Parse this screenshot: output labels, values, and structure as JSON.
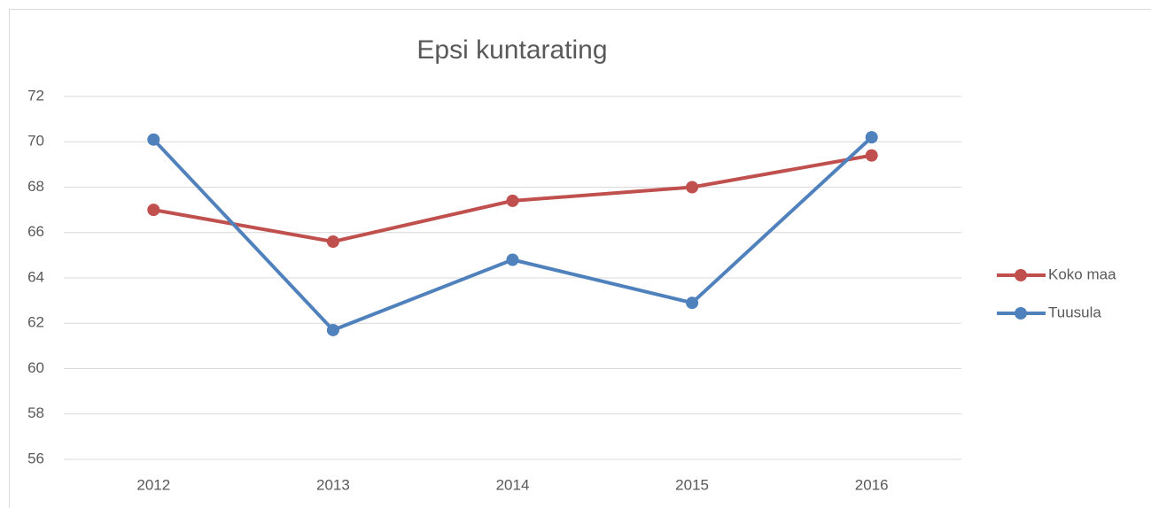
{
  "chart_data": {
    "type": "line",
    "title": "Epsi kuntarating",
    "categories": [
      "2012",
      "2013",
      "2014",
      "2015",
      "2016"
    ],
    "series": [
      {
        "name": "Koko maa",
        "color": "#c0504d",
        "values": [
          67.0,
          65.6,
          67.4,
          68.0,
          69.4
        ]
      },
      {
        "name": "Tuusula",
        "color": "#4f81bd",
        "values": [
          70.1,
          61.7,
          64.8,
          62.9,
          70.2
        ]
      }
    ],
    "ylim": [
      56,
      72
    ],
    "yticks": [
      56,
      58,
      60,
      62,
      64,
      66,
      68,
      70,
      72
    ],
    "grid": true,
    "legend": "right"
  }
}
